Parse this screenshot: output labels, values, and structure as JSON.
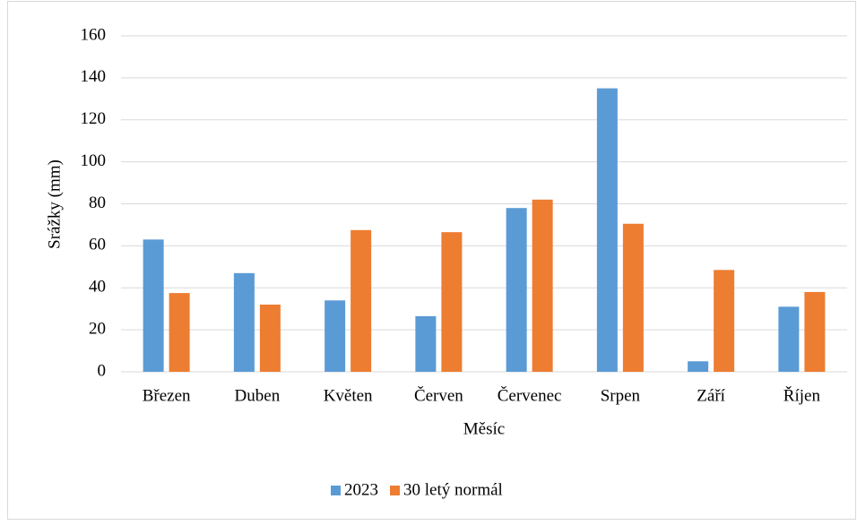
{
  "chart_data": {
    "type": "bar",
    "x_label": "Měsíc",
    "y_label": "Srážky (mm)",
    "categories": [
      "Březen",
      "Duben",
      "Květen",
      "Červen",
      "Červenec",
      "Srpen",
      "Září",
      "Říjen"
    ],
    "series": [
      {
        "name": "2023",
        "color": "#5b9bd5",
        "values": [
          63,
          47,
          34,
          26.5,
          78,
          135,
          5,
          31
        ]
      },
      {
        "name": "30 letý normál",
        "color": "#ed7d31",
        "values": [
          37.5,
          32,
          67.5,
          66.5,
          82,
          70.5,
          48.5,
          38
        ]
      }
    ],
    "ylim": [
      0,
      160
    ],
    "yticks": [
      0,
      20,
      40,
      60,
      80,
      100,
      120,
      140,
      160
    ],
    "grid": true,
    "legend": "bottom"
  }
}
